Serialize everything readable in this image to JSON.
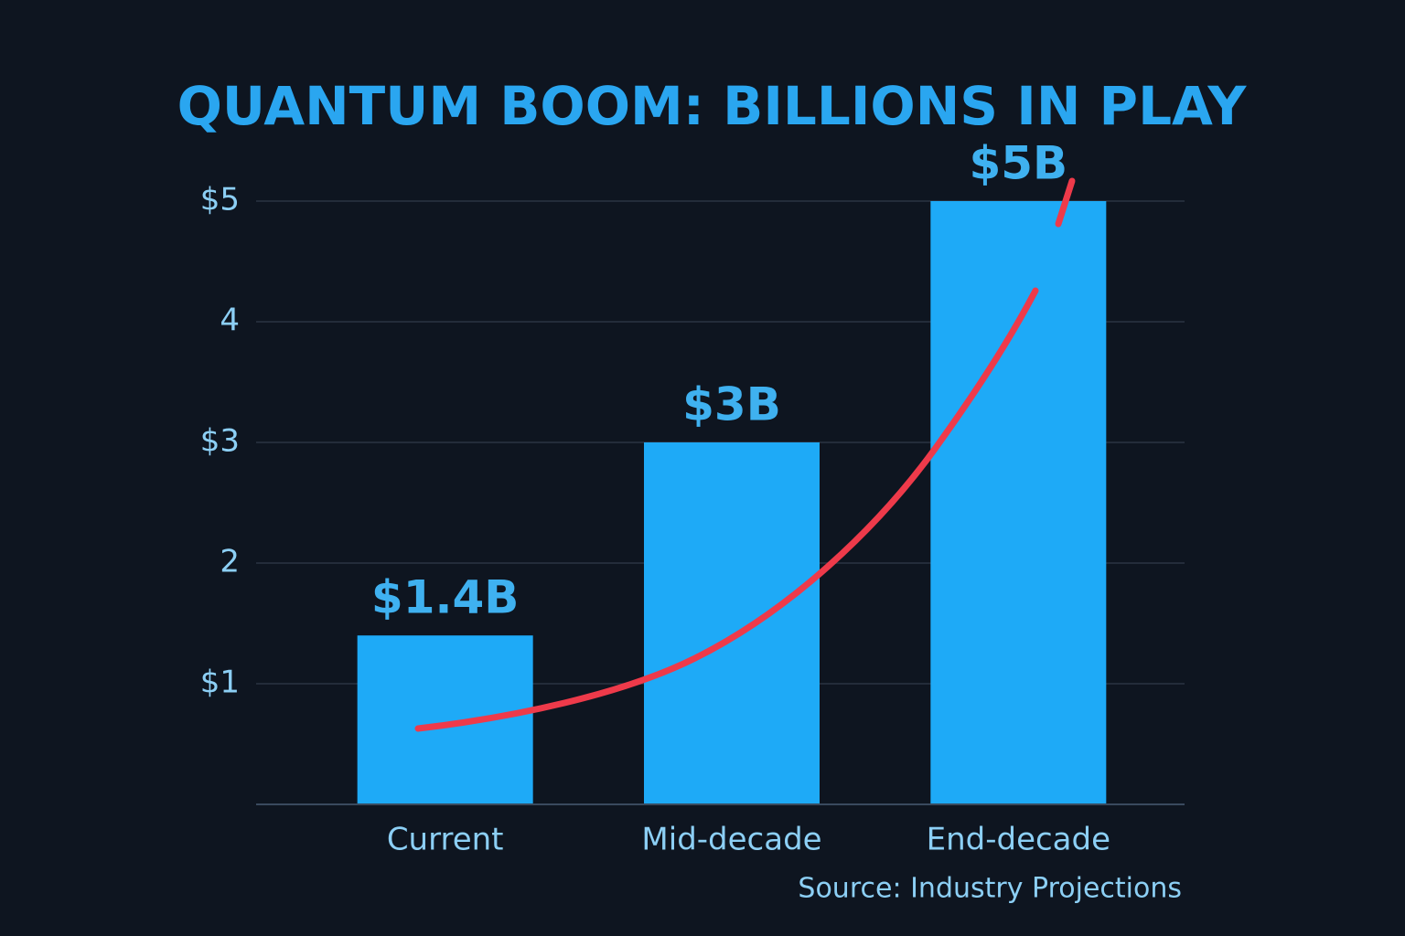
{
  "chart_data": {
    "type": "bar",
    "title": "QUANTUM BOOM: BILLIONS IN PLAY",
    "categories": [
      "Current",
      "Mid-decade",
      "End-decade"
    ],
    "values": [
      1.4,
      3,
      5
    ],
    "value_labels": [
      "$1.4B",
      "$3B",
      "$5B"
    ],
    "color": "#1eaaf7",
    "ylim": [
      0,
      5.5
    ],
    "yticks": [
      {
        "value": 1,
        "label": "$1"
      },
      2,
      {
        "value": 3,
        "label": "$3"
      },
      4,
      {
        "value": 5,
        "label": "$5"
      }
    ],
    "grid": true,
    "source": "Source: Industry Projections"
  }
}
